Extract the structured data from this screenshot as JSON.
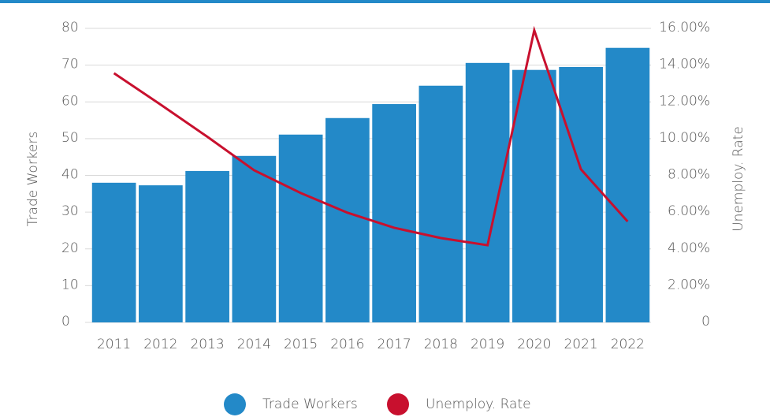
{
  "chart_data": {
    "type": "bar_line",
    "categories": [
      "2011",
      "2012",
      "2013",
      "2014",
      "2015",
      "2016",
      "2017",
      "2018",
      "2019",
      "2020",
      "2021",
      "2022"
    ],
    "series": [
      {
        "name": "Trade Workers",
        "color": "#2389c8",
        "type": "bar",
        "values": [
          38.0,
          37.3,
          41.2,
          45.3,
          51.1,
          55.6,
          59.4,
          64.4,
          70.6,
          68.7,
          69.5,
          74.7
        ]
      },
      {
        "name": "Unemploy. Rate",
        "color": "#c8102e",
        "type": "line",
        "axis": "y2",
        "values": [
          13.56,
          11.85,
          10.1,
          8.28,
          7.04,
          5.97,
          5.15,
          4.59,
          4.2,
          15.9,
          8.33,
          5.49
        ]
      }
    ],
    "ylabel": "Trade Workers",
    "y2label": "Unemploy. Rate",
    "ylim": [
      0,
      80
    ],
    "yticks": [
      0,
      10,
      20,
      30,
      40,
      50,
      60,
      70,
      80
    ],
    "y2lim": [
      0,
      16
    ],
    "y2ticks": [
      0,
      {
        "value": 2,
        "label": "2.00%"
      },
      {
        "value": 4,
        "label": "4.00%"
      },
      {
        "value": 6,
        "label": "6.00%"
      },
      {
        "value": 8,
        "label": "8.00%"
      },
      {
        "value": 10,
        "label": "10.00%"
      },
      {
        "value": 12,
        "label": "12.00%"
      },
      {
        "value": 14,
        "label": "14.00%"
      },
      {
        "value": 16,
        "label": "16.00%"
      }
    ],
    "grid": true,
    "legend": "bottom"
  }
}
